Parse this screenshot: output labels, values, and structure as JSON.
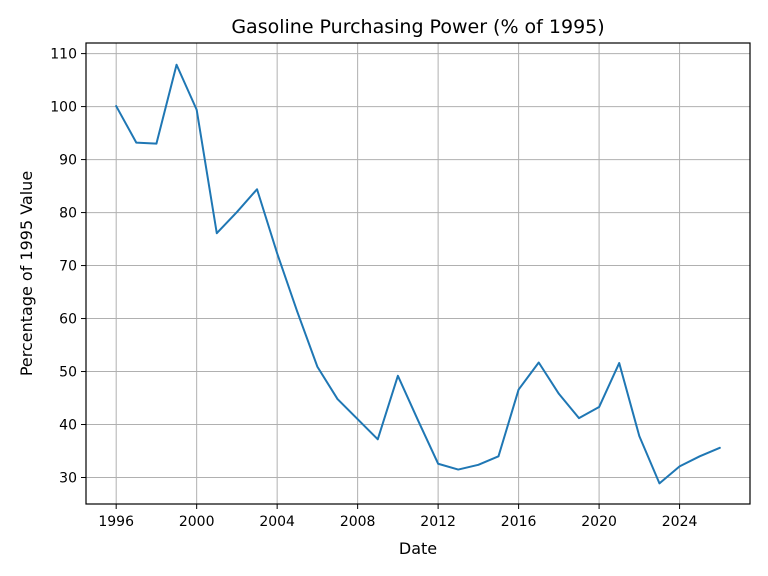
{
  "chart_data": {
    "type": "line",
    "title": "Gasoline Purchasing Power (% of 1995)",
    "xlabel": "Date",
    "ylabel": "Percentage of 1995 Value",
    "xlim": [
      1994.5,
      2027.5
    ],
    "ylim": [
      25,
      112
    ],
    "x_ticks": [
      1996,
      2000,
      2004,
      2008,
      2012,
      2016,
      2020,
      2024
    ],
    "x_tick_labels": [
      "1996",
      "2000",
      "2004",
      "2008",
      "2012",
      "2016",
      "2020",
      "2024"
    ],
    "y_ticks": [
      30,
      40,
      50,
      60,
      70,
      80,
      90,
      100,
      110
    ],
    "y_tick_labels": [
      "30",
      "40",
      "50",
      "60",
      "70",
      "80",
      "90",
      "100",
      "110"
    ],
    "grid": true,
    "legend": "none",
    "series": [
      {
        "color": "#1f77b4",
        "x": [
          1996,
          1997,
          1998,
          1999,
          2000,
          2001,
          2002,
          2003,
          2004,
          2005,
          2006,
          2007,
          2008,
          2009,
          2010,
          2011,
          2012,
          2013,
          2014,
          2015,
          2016,
          2017,
          2018,
          2019,
          2020,
          2021,
          2022,
          2023,
          2024,
          2025,
          2026
        ],
        "y": [
          100.1,
          93.2,
          93.0,
          107.9,
          99.4,
          76.1,
          80.1,
          84.4,
          72.3,
          61.3,
          50.9,
          44.8,
          41.0,
          37.2,
          49.2,
          40.8,
          32.6,
          31.5,
          32.4,
          34.0,
          46.6,
          51.7,
          45.8,
          41.2,
          43.3,
          51.6,
          37.8,
          28.9,
          32.1,
          34.0,
          35.6
        ]
      }
    ]
  }
}
